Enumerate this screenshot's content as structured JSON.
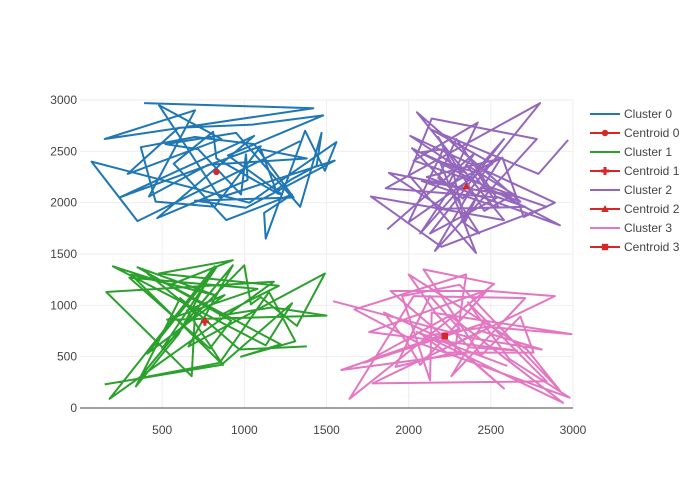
{
  "chart_data": {
    "type": "line",
    "title": "",
    "xlabel": "",
    "ylabel": "",
    "xlim": [
      0,
      3000
    ],
    "ylim": [
      0,
      3000
    ],
    "x_ticks": [
      500,
      1000,
      1500,
      2000,
      2500,
      3000
    ],
    "y_ticks": [
      0,
      500,
      1000,
      1500,
      2000,
      2500,
      3000
    ],
    "grid": true,
    "legend_position": "right",
    "series": [
      {
        "name": "Cluster 0",
        "color": "#1f77b4",
        "mode": "lines",
        "x": [
          390,
          1420,
          150,
          700,
          420,
          780,
          1380,
          1100,
          1200,
          1230,
          900,
          1480,
          1050,
          600,
          290,
          860,
          480,
          850,
          1550,
          1010,
          700,
          1300,
          1060,
          700,
          370,
          460,
          820,
          1100,
          240,
          1060,
          470,
          1020,
          1010,
          980,
          720,
          520,
          950,
          1340,
          1470,
          1440,
          1290,
          1180,
          830,
          810,
          570,
          890,
          1290,
          1120,
          1130,
          1370,
          1490,
          1560,
          1030,
          70,
          350,
          1340
        ],
        "y": [
          2970,
          2920,
          2620,
          2900,
          2060,
          2370,
          2430,
          2520,
          2090,
          2080,
          2460,
          2850,
          2760,
          2730,
          2280,
          2620,
          2950,
          2050,
          2410,
          1950,
          2020,
          2050,
          2570,
          2640,
          2540,
          2010,
          1960,
          2550,
          2050,
          2650,
          1850,
          2220,
          2470,
          2080,
          2520,
          2570,
          2680,
          1960,
          2680,
          2360,
          2230,
          2110,
          2430,
          2690,
          2380,
          1830,
          2080,
          1900,
          1650,
          2700,
          2310,
          2590,
          2000,
          2400,
          1820,
          2600
        ]
      },
      {
        "name": "Centroid 0",
        "color": "#d62728",
        "mode": "markers",
        "marker": "circle",
        "x": [
          830
        ],
        "y": [
          2300
        ]
      },
      {
        "name": "Cluster 1",
        "color": "#2ca02c",
        "mode": "lines",
        "x": [
          150,
          860,
          1290,
          1130,
          200,
          550,
          930,
          480,
          1210,
          850,
          1170,
          1500,
          530,
          1080,
          300,
          790,
          920,
          350,
          820,
          310,
          870,
          650,
          880,
          410,
          830,
          500,
          1000,
          1040,
          1100,
          1320,
          1490,
          660,
          930,
          360,
          850,
          1150,
          1310,
          980,
          1220,
          410,
          700,
          680,
          160,
          1180,
          180,
          820,
          600,
          340,
          610,
          970,
          1380
        ],
        "y": [
          230,
          420,
          1020,
          610,
          1380,
          1200,
          1440,
          1310,
          1190,
          900,
          980,
          900,
          860,
          1160,
          1270,
          580,
          850,
          1370,
          1100,
          1300,
          420,
          950,
          1100,
          530,
          1370,
          580,
          1390,
          1010,
          1080,
          800,
          1310,
          600,
          1390,
          290,
          440,
          1130,
          650,
          500,
          620,
          1310,
          930,
          310,
          1130,
          1230,
          90,
          1380,
          720,
          210,
          1070,
          570,
          600
        ]
      },
      {
        "name": "Centroid 1",
        "color": "#d62728",
        "mode": "markers",
        "marker": "cross",
        "x": [
          760
        ],
        "y": [
          840
        ]
      },
      {
        "name": "Cluster 2",
        "color": "#9467bd",
        "mode": "lines",
        "x": [
          1870,
          2400,
          2070,
          2580,
          2130,
          2540,
          1860,
          2800,
          2330,
          2180,
          2290,
          2530,
          2710,
          2210,
          1880,
          2380,
          2160,
          2780,
          2140,
          2000,
          2410,
          2190,
          2420,
          2550,
          2080,
          2660,
          2350,
          2470,
          2630,
          2460,
          2180,
          2260,
          2340,
          2440,
          2680,
          2050,
          2580,
          1770,
          2200,
          2840,
          2030,
          2420,
          2240,
          2020,
          2920,
          2110,
          2380,
          2560,
          2320,
          2430,
          2240,
          2570,
          2700,
          2890,
          2010,
          2350,
          2070,
          2210,
          2000,
          2510,
          2140,
          2790,
          2970
        ],
        "y": [
          1740,
          2480,
          1700,
          2620,
          1700,
          2050,
          2140,
          2970,
          2040,
          2240,
          2620,
          2060,
          1960,
          1940,
          2290,
          2130,
          1530,
          2620,
          2820,
          2270,
          1510,
          2400,
          2290,
          1950,
          2210,
          2060,
          2370,
          2120,
          2070,
          1920,
          2640,
          2380,
          1800,
          2150,
          2010,
          2880,
          1830,
          2060,
          1570,
          1960,
          2410,
          2780,
          2170,
          2530,
          1780,
          2250,
          2360,
          2430,
          1820,
          1700,
          2170,
          2440,
          1860,
          2000,
          2650,
          2290,
          2490,
          2520,
          1810,
          2380,
          2710,
          2280,
          2610
        ]
      },
      {
        "name": "Centroid 2",
        "color": "#d62728",
        "mode": "markers",
        "marker": "triangle",
        "x": [
          2350
        ],
        "y": [
          2160
        ]
      },
      {
        "name": "Cluster 3",
        "color": "#e377c2",
        "mode": "lines",
        "x": [
          1540,
          2390,
          2810,
          2440,
          1780,
          2840,
          2360,
          2610,
          2980,
          2050,
          1670,
          2350,
          2280,
          1920,
          2130,
          2310,
          1590,
          2340,
          2580,
          1890,
          2490,
          2890,
          2280,
          1850,
          1990,
          2070,
          2480,
          1760,
          2660,
          2370,
          2170,
          2000,
          2720,
          2920,
          2310,
          1960,
          2130,
          2140,
          2990,
          2480,
          2090,
          2230,
          2760,
          2680,
          2440,
          2090,
          2520,
          1640,
          2030,
          2710,
          2260,
          2450,
          1730,
          2250,
          2940,
          2050,
          2600
        ],
        "y": [
          1040,
          680,
          570,
          750,
          240,
          260,
          1030,
          480,
          100,
          640,
          960,
          1300,
          540,
          400,
          1090,
          770,
          370,
          530,
          190,
          1140,
          1140,
          1090,
          620,
          930,
          640,
          420,
          1150,
          740,
          560,
          590,
          910,
          1300,
          570,
          170,
          1200,
          1090,
          270,
          930,
          720,
          790,
          700,
          540,
          540,
          890,
          510,
          1350,
          1210,
          90,
          1090,
          1070,
          310,
          820,
          440,
          900,
          50,
          740,
          410
        ]
      },
      {
        "name": "Centroid 3",
        "color": "#d62728",
        "mode": "markers",
        "marker": "square",
        "x": [
          2220
        ],
        "y": [
          700
        ]
      }
    ]
  }
}
